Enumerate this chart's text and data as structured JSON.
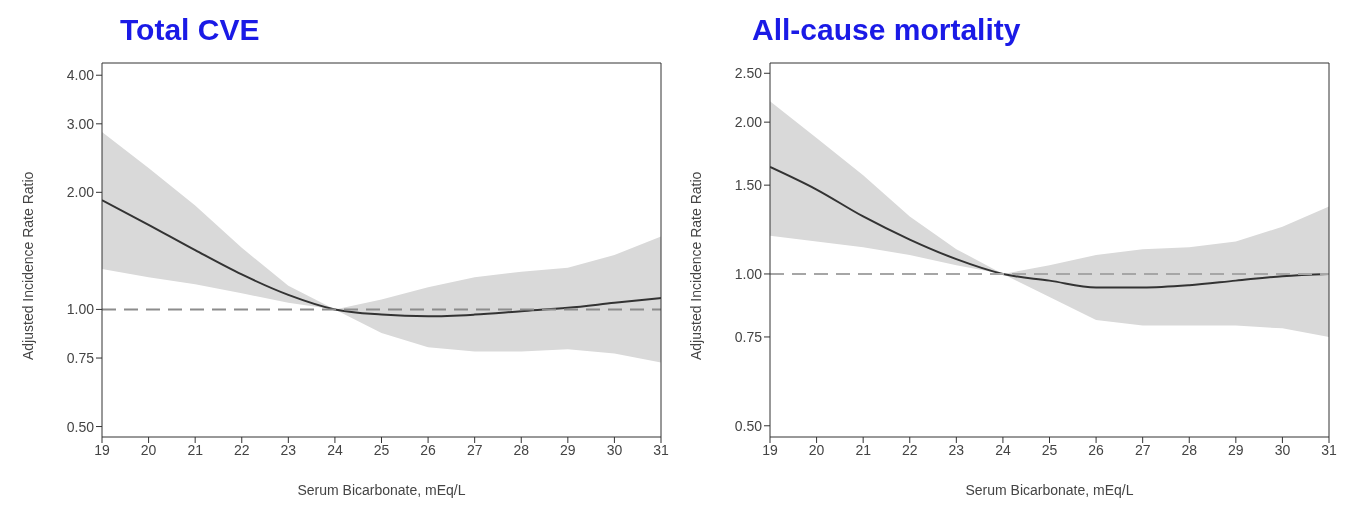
{
  "chart_data": [
    {
      "type": "line",
      "title": "Total CVE",
      "xlabel": "Serum Bicarbonate, mEq/L",
      "ylabel": "Adjusted Incidence Rate Ratio",
      "log": true,
      "marker": "none",
      "line_style": "solid",
      "x": [
        19,
        20,
        21,
        22,
        23,
        24,
        25,
        26,
        27,
        28,
        29,
        30,
        31
      ],
      "xlim": [
        19,
        31
      ],
      "xticks": [
        19,
        20,
        21,
        22,
        23,
        24,
        25,
        26,
        27,
        28,
        29,
        30,
        31
      ],
      "ylim": [
        0.47,
        4.3
      ],
      "yticks": [
        {
          "value": 0.5,
          "label": "0.50"
        },
        {
          "value": 0.75,
          "label": "0.75"
        },
        {
          "value": 1,
          "label": "1.00"
        },
        {
          "value": 2,
          "label": "2.00"
        },
        {
          "value": 3,
          "label": "3.00"
        },
        {
          "value": 4,
          "label": "4.00"
        }
      ],
      "series": [
        {
          "color": "#333333",
          "values": [
            1.91,
            1.65,
            1.42,
            1.23,
            1.09,
            1.0,
            0.97,
            0.96,
            0.97,
            0.99,
            1.01,
            1.04,
            1.07
          ],
          "lower": [
            1.27,
            1.21,
            1.16,
            1.1,
            1.04,
            1.0,
            0.87,
            0.8,
            0.78,
            0.78,
            0.79,
            0.77,
            0.73
          ],
          "upper": [
            2.86,
            2.31,
            1.85,
            1.44,
            1.15,
            1.0,
            1.06,
            1.14,
            1.21,
            1.25,
            1.28,
            1.38,
            1.54
          ]
        }
      ],
      "ref_lines": [
        {
          "axis": "y",
          "value": 1,
          "color": "#8c8c8c",
          "line_style": "dashed"
        }
      ]
    },
    {
      "type": "line",
      "title": "All-cause mortality",
      "xlabel": "Serum Bicarbonate, mEq/L",
      "ylabel": "Adjusted Incidence Rate Ratio",
      "log": true,
      "marker": "none",
      "line_style": "solid",
      "x": [
        19,
        20,
        21,
        22,
        23,
        24,
        25,
        26,
        27,
        28,
        29,
        30,
        31
      ],
      "xlim": [
        19,
        31
      ],
      "xticks": [
        19,
        20,
        21,
        22,
        23,
        24,
        25,
        26,
        27,
        28,
        29,
        30,
        31
      ],
      "ylim": [
        0.475,
        2.62
      ],
      "yticks": [
        {
          "value": 0.5,
          "label": "0.50"
        },
        {
          "value": 0.75,
          "label": "0.75"
        },
        {
          "value": 1,
          "label": "1.00"
        },
        {
          "value": 1.5,
          "label": "1.50"
        },
        {
          "value": 2,
          "label": "2.00"
        },
        {
          "value": 2.5,
          "label": "2.50"
        }
      ],
      "series": [
        {
          "color": "#333333",
          "values": [
            1.63,
            1.47,
            1.3,
            1.17,
            1.07,
            1.0,
            0.97,
            0.94,
            0.94,
            0.95,
            0.97,
            0.99,
            1.0
          ],
          "lower": [
            1.19,
            1.16,
            1.13,
            1.09,
            1.04,
            1.0,
            0.9,
            0.81,
            0.79,
            0.79,
            0.79,
            0.78,
            0.75
          ],
          "upper": [
            2.2,
            1.86,
            1.57,
            1.3,
            1.12,
            1.0,
            1.04,
            1.09,
            1.12,
            1.13,
            1.16,
            1.24,
            1.36
          ]
        }
      ],
      "ref_lines": [
        {
          "axis": "y",
          "value": 1,
          "color": "#a6a6a6",
          "line_style": "dashed"
        }
      ]
    }
  ]
}
